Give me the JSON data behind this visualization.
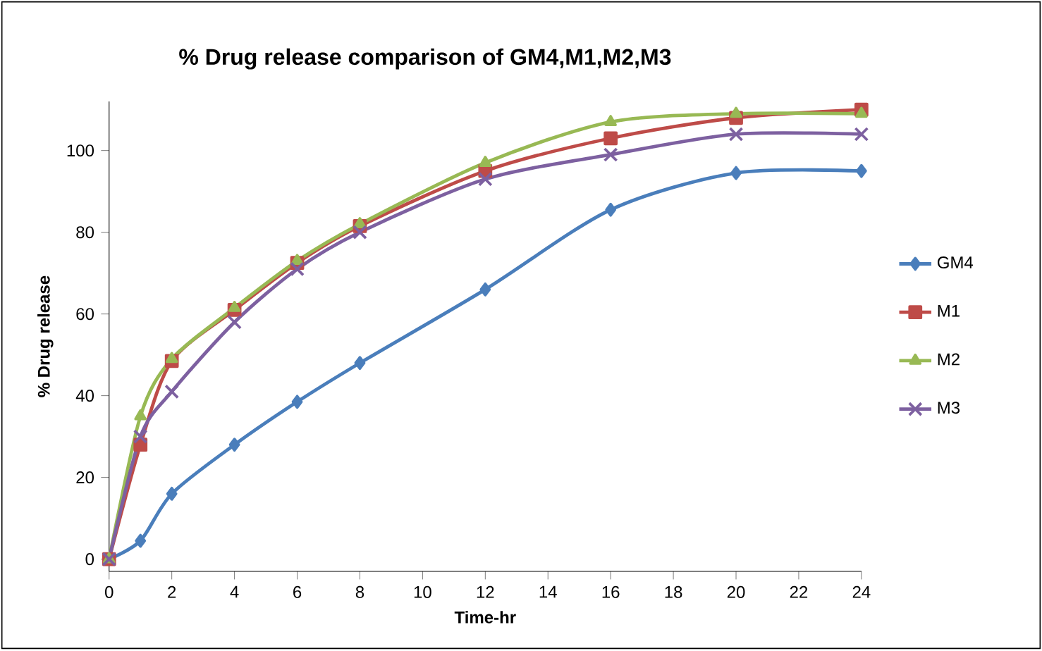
{
  "chart_data": {
    "type": "line",
    "title": "% Drug release comparison of GM4,M1,M2,M3",
    "xlabel": "Time-hr",
    "ylabel": "% Drug release",
    "x": [
      0,
      1,
      2,
      4,
      6,
      8,
      12,
      16,
      20,
      24
    ],
    "xlim": [
      0,
      24
    ],
    "xticks": [
      0,
      2,
      4,
      6,
      8,
      10,
      12,
      14,
      16,
      18,
      20,
      22,
      24
    ],
    "ylim": [
      -3,
      112
    ],
    "yticks": [
      0,
      20,
      40,
      60,
      80,
      100
    ],
    "legend": "right",
    "grid": false,
    "series": [
      {
        "name": "GM4",
        "color": "#4a7ebb",
        "marker": "diamond",
        "values": [
          0,
          4.5,
          16,
          28,
          38.5,
          48,
          66,
          85.5,
          94.5,
          95
        ]
      },
      {
        "name": "M1",
        "color": "#be4b48",
        "marker": "square",
        "values": [
          0,
          28,
          48.5,
          61,
          72.5,
          81.5,
          95,
          103,
          108,
          110
        ]
      },
      {
        "name": "M2",
        "color": "#98b954",
        "marker": "triangle",
        "values": [
          0,
          35,
          49,
          61.5,
          73,
          82,
          97,
          107,
          109,
          109
        ]
      },
      {
        "name": "M3",
        "color": "#7d60a0",
        "marker": "cross",
        "values": [
          0,
          30,
          41,
          58,
          71,
          80,
          93,
          99,
          104,
          104
        ]
      }
    ]
  }
}
